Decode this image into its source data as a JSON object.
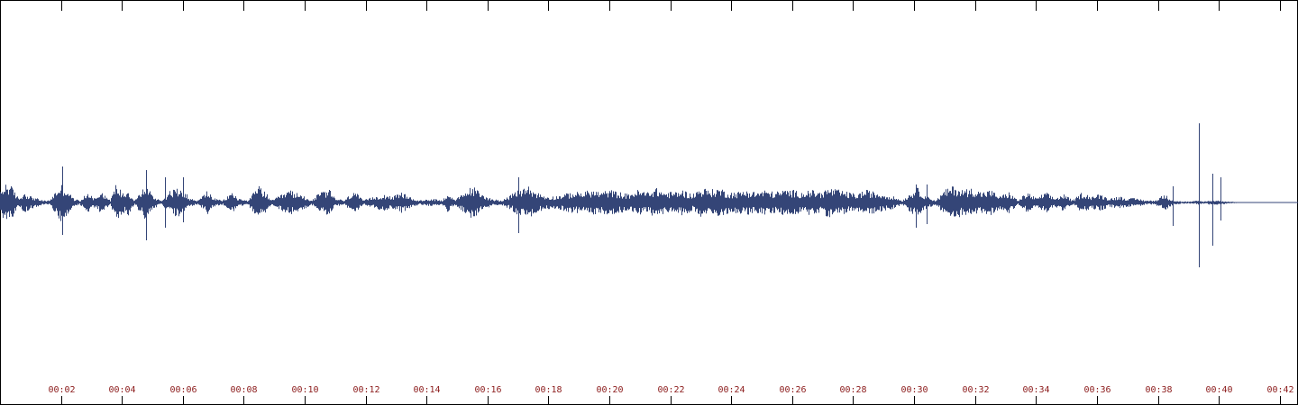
{
  "colors": {
    "background": "#ffffff",
    "waveform": "#344577",
    "ticks": "#000000",
    "tick_labels": "#8b1a1a",
    "border": "#000000"
  },
  "chart_data": {
    "type": "area",
    "title": "",
    "xlabel": "",
    "ylabel": "",
    "x_unit": "seconds",
    "xlim": [
      0,
      42.6
    ],
    "ylim": [
      -1,
      1
    ],
    "grid": false,
    "tick_positions_seconds": [
      2,
      4,
      6,
      8,
      10,
      12,
      14,
      16,
      18,
      20,
      22,
      24,
      26,
      28,
      30,
      32,
      34,
      36,
      38,
      40,
      42
    ],
    "tick_labels": [
      "00:02",
      "00:04",
      "00:06",
      "00:08",
      "00:10",
      "00:12",
      "00:14",
      "00:16",
      "00:18",
      "00:20",
      "00:22",
      "00:24",
      "00:26",
      "00:28",
      "00:30",
      "00:32",
      "00:34",
      "00:36",
      "00:38",
      "00:40",
      "00:42"
    ],
    "series": [
      {
        "amplitude_envelope": [
          [
            0.0,
            0.05
          ],
          [
            0.2,
            0.1
          ],
          [
            0.4,
            0.07
          ],
          [
            0.6,
            0.02
          ],
          [
            0.8,
            0.05
          ],
          [
            1.0,
            0.03
          ],
          [
            1.2,
            0.02
          ],
          [
            1.4,
            0.01
          ],
          [
            1.6,
            0.01
          ],
          [
            2.0,
            0.09
          ],
          [
            2.2,
            0.06
          ],
          [
            2.4,
            0.02
          ],
          [
            2.6,
            0.01
          ],
          [
            2.9,
            0.05
          ],
          [
            3.1,
            0.02
          ],
          [
            3.3,
            0.06
          ],
          [
            3.6,
            0.01
          ],
          [
            3.8,
            0.09
          ],
          [
            4.0,
            0.05
          ],
          [
            4.2,
            0.06
          ],
          [
            4.4,
            0.01
          ],
          [
            4.8,
            0.09
          ],
          [
            5.0,
            0.03
          ],
          [
            5.3,
            0.01
          ],
          [
            5.6,
            0.06
          ],
          [
            6.0,
            0.07
          ],
          [
            6.2,
            0.02
          ],
          [
            6.5,
            0.01
          ],
          [
            6.8,
            0.06
          ],
          [
            7.0,
            0.02
          ],
          [
            7.3,
            0.01
          ],
          [
            7.6,
            0.05
          ],
          [
            7.8,
            0.02
          ],
          [
            8.1,
            0.01
          ],
          [
            8.5,
            0.08
          ],
          [
            8.7,
            0.05
          ],
          [
            8.9,
            0.01
          ],
          [
            9.5,
            0.06
          ],
          [
            9.8,
            0.04
          ],
          [
            10.0,
            0.03
          ],
          [
            10.2,
            0.01
          ],
          [
            10.5,
            0.05
          ],
          [
            10.8,
            0.06
          ],
          [
            11.0,
            0.02
          ],
          [
            11.3,
            0.01
          ],
          [
            11.6,
            0.06
          ],
          [
            11.9,
            0.01
          ],
          [
            12.3,
            0.03
          ],
          [
            12.6,
            0.04
          ],
          [
            12.9,
            0.03
          ],
          [
            13.2,
            0.05
          ],
          [
            13.5,
            0.02
          ],
          [
            13.8,
            0.01
          ],
          [
            14.2,
            0.02
          ],
          [
            14.5,
            0.01
          ],
          [
            14.7,
            0.05
          ],
          [
            14.9,
            0.01
          ],
          [
            15.5,
            0.08
          ],
          [
            15.8,
            0.04
          ],
          [
            16.1,
            0.02
          ],
          [
            16.4,
            0.01
          ],
          [
            16.7,
            0.03
          ],
          [
            17.0,
            0.06
          ],
          [
            17.3,
            0.08
          ],
          [
            17.6,
            0.05
          ],
          [
            17.9,
            0.03
          ],
          [
            18.2,
            0.03
          ],
          [
            18.5,
            0.04
          ],
          [
            18.8,
            0.05
          ],
          [
            19.1,
            0.05
          ],
          [
            19.4,
            0.06
          ],
          [
            19.7,
            0.05
          ],
          [
            20.0,
            0.06
          ],
          [
            20.3,
            0.05
          ],
          [
            20.6,
            0.04
          ],
          [
            20.9,
            0.06
          ],
          [
            21.2,
            0.05
          ],
          [
            21.5,
            0.07
          ],
          [
            21.8,
            0.05
          ],
          [
            22.1,
            0.05
          ],
          [
            22.4,
            0.06
          ],
          [
            22.7,
            0.04
          ],
          [
            23.0,
            0.07
          ],
          [
            23.3,
            0.06
          ],
          [
            23.6,
            0.07
          ],
          [
            23.9,
            0.05
          ],
          [
            24.2,
            0.05
          ],
          [
            24.5,
            0.06
          ],
          [
            24.8,
            0.05
          ],
          [
            25.1,
            0.06
          ],
          [
            25.4,
            0.05
          ],
          [
            25.7,
            0.06
          ],
          [
            26.0,
            0.06
          ],
          [
            26.3,
            0.05
          ],
          [
            26.6,
            0.06
          ],
          [
            26.9,
            0.05
          ],
          [
            27.2,
            0.07
          ],
          [
            27.5,
            0.06
          ],
          [
            27.8,
            0.05
          ],
          [
            28.1,
            0.04
          ],
          [
            28.4,
            0.06
          ],
          [
            28.7,
            0.05
          ],
          [
            29.0,
            0.04
          ],
          [
            29.3,
            0.03
          ],
          [
            29.6,
            0.01
          ],
          [
            29.9,
            0.05
          ],
          [
            30.1,
            0.07
          ],
          [
            30.4,
            0.03
          ],
          [
            30.7,
            0.01
          ],
          [
            31.0,
            0.06
          ],
          [
            31.3,
            0.08
          ],
          [
            31.6,
            0.06
          ],
          [
            31.9,
            0.07
          ],
          [
            32.2,
            0.05
          ],
          [
            32.5,
            0.06
          ],
          [
            32.8,
            0.03
          ],
          [
            33.1,
            0.05
          ],
          [
            33.4,
            0.01
          ],
          [
            33.7,
            0.05
          ],
          [
            34.0,
            0.02
          ],
          [
            34.3,
            0.05
          ],
          [
            34.6,
            0.02
          ],
          [
            34.9,
            0.04
          ],
          [
            35.2,
            0.01
          ],
          [
            35.5,
            0.05
          ],
          [
            35.8,
            0.03
          ],
          [
            36.1,
            0.04
          ],
          [
            36.4,
            0.02
          ],
          [
            36.7,
            0.03
          ],
          [
            37.0,
            0.02
          ],
          [
            37.3,
            0.02
          ],
          [
            37.6,
            0.01
          ],
          [
            37.9,
            0.01
          ],
          [
            38.2,
            0.04
          ],
          [
            38.5,
            0.01
          ],
          [
            38.8,
            0.005
          ],
          [
            39.1,
            0.005
          ],
          [
            39.3,
            0.01
          ],
          [
            39.5,
            0.005
          ],
          [
            39.7,
            0.01
          ],
          [
            40.0,
            0.01
          ],
          [
            40.3,
            0.005
          ],
          [
            40.6,
            0.002
          ],
          [
            42.6,
            0.0
          ]
        ],
        "spikes": [
          [
            2.05,
            0.2,
            -0.18
          ],
          [
            4.8,
            0.18,
            -0.21
          ],
          [
            5.4,
            0.14,
            -0.14
          ],
          [
            6.0,
            0.14,
            -0.11
          ],
          [
            17.0,
            0.14,
            -0.17
          ],
          [
            30.05,
            0.1,
            -0.14
          ],
          [
            30.4,
            0.1,
            -0.12
          ],
          [
            38.5,
            0.09,
            -0.13
          ],
          [
            39.35,
            0.44,
            -0.36
          ],
          [
            39.8,
            0.16,
            -0.24
          ],
          [
            40.05,
            0.14,
            -0.1
          ]
        ]
      }
    ]
  }
}
